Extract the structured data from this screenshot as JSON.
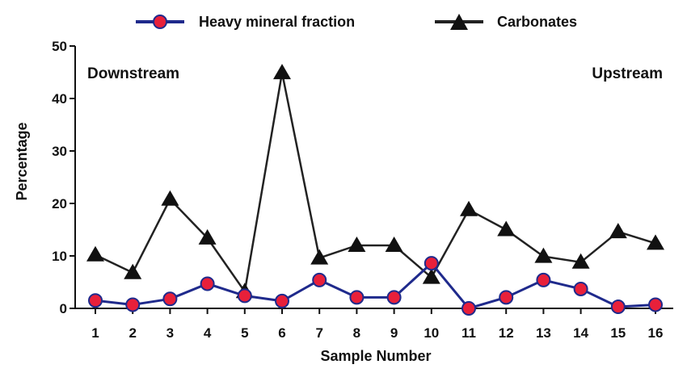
{
  "chart_data": {
    "type": "line",
    "title": "",
    "xlabel": "Sample Number",
    "ylabel": "Percentage",
    "x": [
      1,
      2,
      3,
      4,
      5,
      6,
      7,
      8,
      9,
      10,
      11,
      12,
      13,
      14,
      15,
      16
    ],
    "x_tick_labels": [
      "1",
      "2",
      "3",
      "4",
      "5",
      "6",
      "7",
      "8",
      "9",
      "10",
      "11",
      "12",
      "13",
      "14",
      "15",
      "16"
    ],
    "ylim": [
      0,
      50
    ],
    "y_ticks": [
      0,
      10,
      20,
      30,
      40,
      50
    ],
    "y_tick_labels": [
      "0",
      "10",
      "20",
      "30",
      "40",
      "50"
    ],
    "grid": false,
    "legend_position": "top",
    "annotations": {
      "left": "Downstream",
      "right": "Upstream"
    },
    "series": [
      {
        "name": "Heavy mineral fraction",
        "marker": "circle",
        "line_color": "#1f2a8c",
        "marker_fill": "#e8203a",
        "values": [
          1.5,
          0.7,
          1.8,
          4.7,
          2.4,
          1.4,
          5.4,
          2.1,
          2.1,
          8.6,
          0.0,
          2.1,
          5.4,
          3.7,
          0.3,
          0.7
        ]
      },
      {
        "name": "Carbonates",
        "marker": "triangle",
        "line_color": "#222222",
        "marker_fill": "#111111",
        "values": [
          10.2,
          6.8,
          20.8,
          13.4,
          3.2,
          44.9,
          9.6,
          12.0,
          12.0,
          5.9,
          18.8,
          15.0,
          9.9,
          8.8,
          14.6,
          12.4
        ]
      }
    ]
  }
}
